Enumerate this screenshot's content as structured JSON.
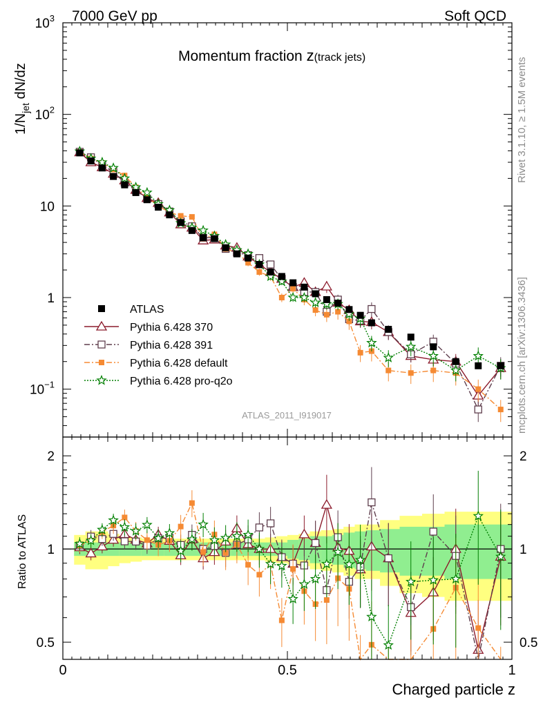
{
  "header": {
    "left": "7000 GeV pp",
    "right": "Soft QCD"
  },
  "side_labels": {
    "rivet": "Rivet 3.1.10, ≥ 1.5M events",
    "mcplots": "mcplots.cern.ch [arXiv:1306.3436]"
  },
  "chart_data": {
    "type": "scatter",
    "title_main": "Momentum fraction ",
    "title_var": "z",
    "title_sub": "(track jets)",
    "analysis_id": "ATLAS_2011_I919017",
    "xlabel": "Charged particle z",
    "ylabel_main": "1/N",
    "ylabel_sub": "jet",
    "ylabel_tail": " dN/dz",
    "ratio_ylabel": "Ratio to ATLAS",
    "x_range": [
      0,
      1
    ],
    "y_range": [
      0.03,
      1000
    ],
    "y_scale": "log",
    "ratio_range": [
      0.44,
      2.3
    ],
    "x_ticks": [
      "0",
      "0.5",
      "1"
    ],
    "y_tick_labels": {
      "1000": "10^3",
      "100": "10^2",
      "10": "10",
      "1": "1",
      "0.1": "10^-1"
    },
    "ratio_ticks": [
      "0.5",
      "1",
      "2"
    ],
    "legend_position": "middle-left",
    "x": [
      0.0375,
      0.0625,
      0.0875,
      0.1125,
      0.1375,
      0.1625,
      0.1875,
      0.2125,
      0.2375,
      0.2625,
      0.2875,
      0.3125,
      0.3375,
      0.3625,
      0.3875,
      0.4125,
      0.4375,
      0.4625,
      0.4875,
      0.5125,
      0.5375,
      0.5625,
      0.5875,
      0.6125,
      0.6375,
      0.6625,
      0.6875,
      0.725,
      0.775,
      0.825,
      0.875,
      0.925,
      0.975
    ],
    "atlas": {
      "name": "ATLAS",
      "color": "#000000",
      "values": [
        38.0,
        31.0,
        26.0,
        21.0,
        17.0,
        14.0,
        11.7,
        9.7,
        8.0,
        6.6,
        5.4,
        4.5,
        4.4,
        3.5,
        3.0,
        2.7,
        2.3,
        1.9,
        1.7,
        1.45,
        1.3,
        1.1,
        0.95,
        0.87,
        0.74,
        0.64,
        0.53,
        0.45,
        0.37,
        0.29,
        0.2,
        0.18,
        0.18
      ],
      "band_inner": [
        0.05,
        0.05,
        0.05,
        0.05,
        0.05,
        0.05,
        0.05,
        0.05,
        0.05,
        0.05,
        0.05,
        0.05,
        0.05,
        0.05,
        0.05,
        0.05,
        0.05,
        0.05,
        0.05,
        0.07,
        0.08,
        0.1,
        0.1,
        0.11,
        0.13,
        0.14,
        0.15,
        0.16,
        0.18,
        0.18,
        0.2,
        0.2,
        0.2
      ],
      "band_outer": [
        0.11,
        0.14,
        0.14,
        0.12,
        0.1,
        0.09,
        0.08,
        0.08,
        0.08,
        0.08,
        0.08,
        0.08,
        0.08,
        0.08,
        0.08,
        0.08,
        0.08,
        0.09,
        0.1,
        0.11,
        0.12,
        0.14,
        0.15,
        0.16,
        0.18,
        0.2,
        0.2,
        0.24,
        0.28,
        0.3,
        0.32,
        0.32,
        0.32
      ],
      "band_inner_color": "#90ee90",
      "band_outer_color": "#ffff80"
    },
    "series": [
      {
        "name": "Pythia 6.428 370",
        "color": "#8b1a2b",
        "marker": "triangle-open",
        "line": "solid",
        "values": [
          38.5,
          30.0,
          26.5,
          22.5,
          19.0,
          15.0,
          12.2,
          10.8,
          8.5,
          6.3,
          5.8,
          4.2,
          4.3,
          3.7,
          3.5,
          2.8,
          2.3,
          1.9,
          1.6,
          1.3,
          1.45,
          1.15,
          1.32,
          0.88,
          0.73,
          0.55,
          0.54,
          0.42,
          0.23,
          0.21,
          0.2,
          0.085,
          0.17
        ],
        "ratio_err": [
          0.05,
          0.05,
          0.05,
          0.05,
          0.05,
          0.05,
          0.06,
          0.06,
          0.07,
          0.07,
          0.08,
          0.08,
          0.09,
          0.09,
          0.1,
          0.1,
          0.11,
          0.12,
          0.13,
          0.14,
          0.15,
          0.18,
          0.25,
          0.2,
          0.22,
          0.25,
          0.28,
          0.3,
          0.25,
          0.3,
          0.35,
          0.45,
          0.4
        ]
      },
      {
        "name": "Pythia 6.428 391",
        "color": "#5e3d4c",
        "marker": "square-open",
        "line": "dashdot",
        "values": [
          39.0,
          34.0,
          28.0,
          23.5,
          18.0,
          14.8,
          12.0,
          10.5,
          8.7,
          6.8,
          6.0,
          4.5,
          4.5,
          3.4,
          3.1,
          2.9,
          2.7,
          2.3,
          1.6,
          1.3,
          1.15,
          1.15,
          0.7,
          0.95,
          0.58,
          0.56,
          0.75,
          0.42,
          0.24,
          0.33,
          0.19,
          0.06,
          0.18
        ],
        "ratio_err": [
          0.05,
          0.05,
          0.05,
          0.05,
          0.06,
          0.06,
          0.06,
          0.07,
          0.07,
          0.08,
          0.08,
          0.08,
          0.09,
          0.1,
          0.1,
          0.11,
          0.12,
          0.13,
          0.14,
          0.15,
          0.16,
          0.18,
          0.2,
          0.22,
          0.24,
          0.26,
          0.3,
          0.3,
          0.3,
          0.32,
          0.35,
          0.45,
          0.4
        ]
      },
      {
        "name": "Pythia 6.428 default",
        "color": "#f58a33",
        "marker": "square-filled",
        "line": "dashdot",
        "values": [
          39.0,
          33.0,
          29.5,
          25.0,
          21.5,
          16.0,
          12.5,
          10.0,
          8.5,
          7.8,
          7.6,
          4.4,
          4.9,
          3.4,
          3.1,
          2.4,
          1.9,
          1.7,
          1.0,
          1.25,
          0.95,
          0.73,
          0.65,
          0.7,
          0.55,
          0.25,
          0.26,
          0.16,
          0.15,
          0.16,
          0.15,
          0.1,
          0.06
        ],
        "ratio_err": [
          0.05,
          0.05,
          0.05,
          0.06,
          0.06,
          0.07,
          0.07,
          0.08,
          0.08,
          0.09,
          0.1,
          0.1,
          0.11,
          0.12,
          0.13,
          0.14,
          0.15,
          0.17,
          0.18,
          0.2,
          0.22,
          0.24,
          0.28,
          0.3,
          0.32,
          0.35,
          0.38,
          0.4,
          0.4,
          0.42,
          0.45,
          0.45,
          0.45
        ]
      },
      {
        "name": "Pythia 6.428 pro-q2o",
        "color": "#007f00",
        "marker": "star-open",
        "line": "dotted",
        "values": [
          39.5,
          33.0,
          30.0,
          26.0,
          20.0,
          16.0,
          14.0,
          10.5,
          9.0,
          6.5,
          5.8,
          5.4,
          4.7,
          3.8,
          3.3,
          3.0,
          2.3,
          1.7,
          1.5,
          1.0,
          1.0,
          0.88,
          0.85,
          0.85,
          0.66,
          0.59,
          0.32,
          0.22,
          0.29,
          0.23,
          0.16,
          0.23,
          0.17
        ],
        "ratio_err": [
          0.05,
          0.05,
          0.05,
          0.05,
          0.06,
          0.06,
          0.06,
          0.07,
          0.07,
          0.08,
          0.08,
          0.09,
          0.1,
          0.1,
          0.11,
          0.12,
          0.13,
          0.14,
          0.15,
          0.17,
          0.18,
          0.2,
          0.22,
          0.24,
          0.26,
          0.3,
          0.32,
          0.35,
          0.35,
          0.38,
          0.4,
          0.4,
          0.42
        ]
      }
    ]
  }
}
